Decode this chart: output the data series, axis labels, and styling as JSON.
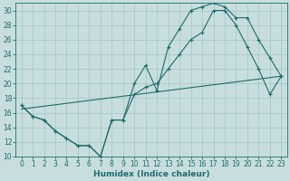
{
  "xlabel": "Humidex (Indice chaleur)",
  "background_color": "#c8dede",
  "grid_color": "#a8c8c8",
  "line_color": "#1e6b6b",
  "xlim": [
    -0.5,
    23.5
  ],
  "ylim": [
    10,
    31
  ],
  "yticks": [
    10,
    12,
    14,
    16,
    18,
    20,
    22,
    24,
    26,
    28,
    30
  ],
  "xticks": [
    0,
    1,
    2,
    3,
    4,
    5,
    6,
    7,
    8,
    9,
    10,
    11,
    12,
    13,
    14,
    15,
    16,
    17,
    18,
    19,
    20,
    21,
    22,
    23
  ],
  "hours": [
    0,
    1,
    2,
    3,
    4,
    5,
    6,
    7,
    8,
    9,
    10,
    11,
    12,
    13,
    14,
    15,
    16,
    17,
    18,
    19,
    20,
    21,
    22,
    23
  ],
  "line1": [
    17,
    15.5,
    15,
    13.5,
    12.5,
    11.5,
    11.5,
    10,
    15,
    15,
    20,
    22.5,
    19,
    25,
    27.5,
    30,
    30.5,
    31,
    30.5,
    29,
    29,
    26,
    23.5,
    21
  ],
  "line2": [
    17,
    15.5,
    15,
    13.5,
    12.5,
    11.5,
    11.5,
    10,
    15,
    15,
    18.5,
    19.5,
    20,
    22,
    24,
    26,
    27,
    30,
    30,
    28,
    25,
    22,
    18.5,
    21
  ],
  "line3_x": [
    0,
    23
  ],
  "line3_y": [
    16.5,
    21
  ]
}
